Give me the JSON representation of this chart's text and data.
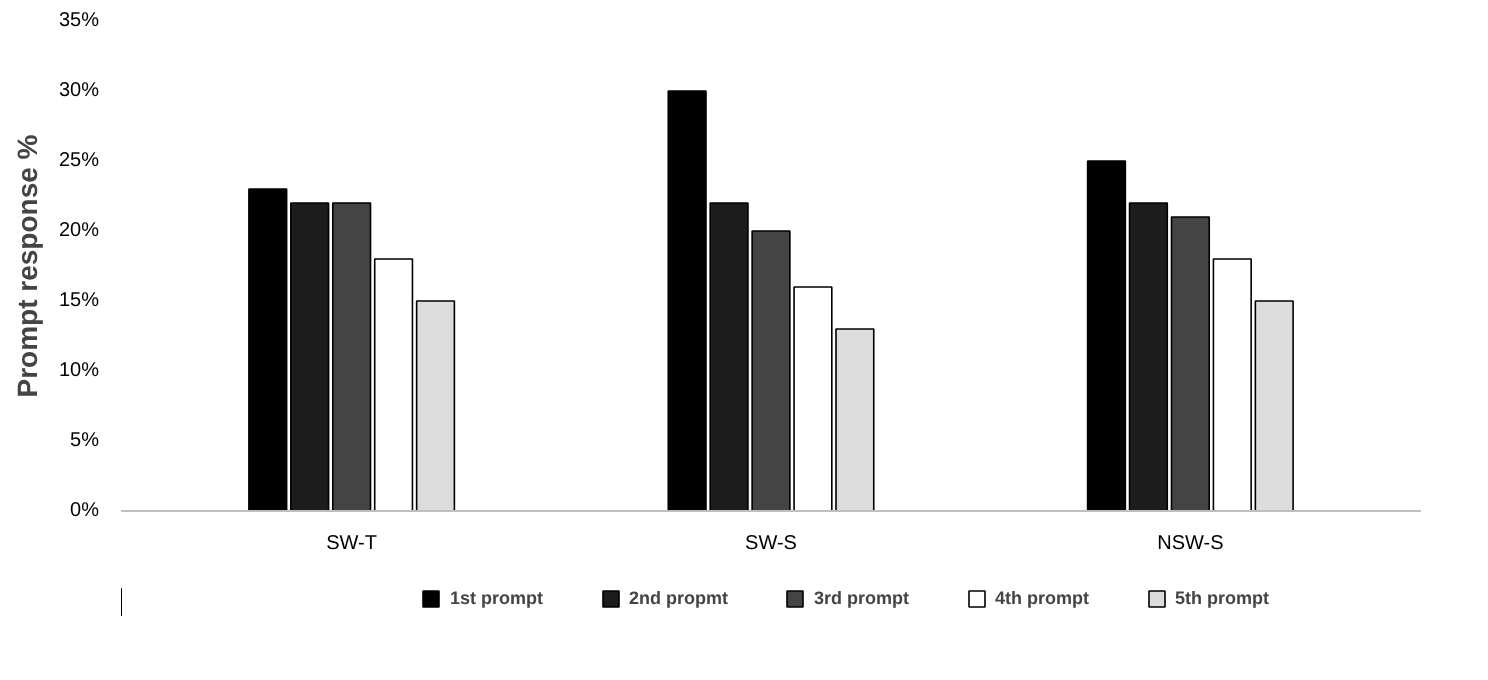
{
  "chart_data": {
    "type": "bar",
    "ylabel": "Prompt response %",
    "categories": [
      "SW-T",
      "SW-S",
      "NSW-S"
    ],
    "series": [
      {
        "name": "1st prompt",
        "color": "#000000",
        "values": [
          23,
          30,
          25
        ]
      },
      {
        "name": "2nd propmt",
        "color": "#1c1c1c",
        "values": [
          22,
          22,
          22
        ]
      },
      {
        "name": "3rd prompt",
        "color": "#444444",
        "values": [
          22,
          20,
          21
        ]
      },
      {
        "name": "4th prompt",
        "color": "#ffffff",
        "values": [
          18,
          16,
          18
        ]
      },
      {
        "name": "5th prompt",
        "color": "#dcdcdc",
        "values": [
          15,
          13,
          15
        ]
      }
    ],
    "ylim": [
      0,
      35
    ],
    "yticks": [
      {
        "value": 0,
        "label": "0%"
      },
      {
        "value": 5,
        "label": "5%"
      },
      {
        "value": 10,
        "label": "10%"
      },
      {
        "value": 15,
        "label": "15%"
      },
      {
        "value": 20,
        "label": "20%"
      },
      {
        "value": 25,
        "label": "25%"
      },
      {
        "value": 30,
        "label": "30%"
      },
      {
        "value": 35,
        "label": "35%"
      }
    ],
    "grid": false,
    "legend": "bottom"
  }
}
